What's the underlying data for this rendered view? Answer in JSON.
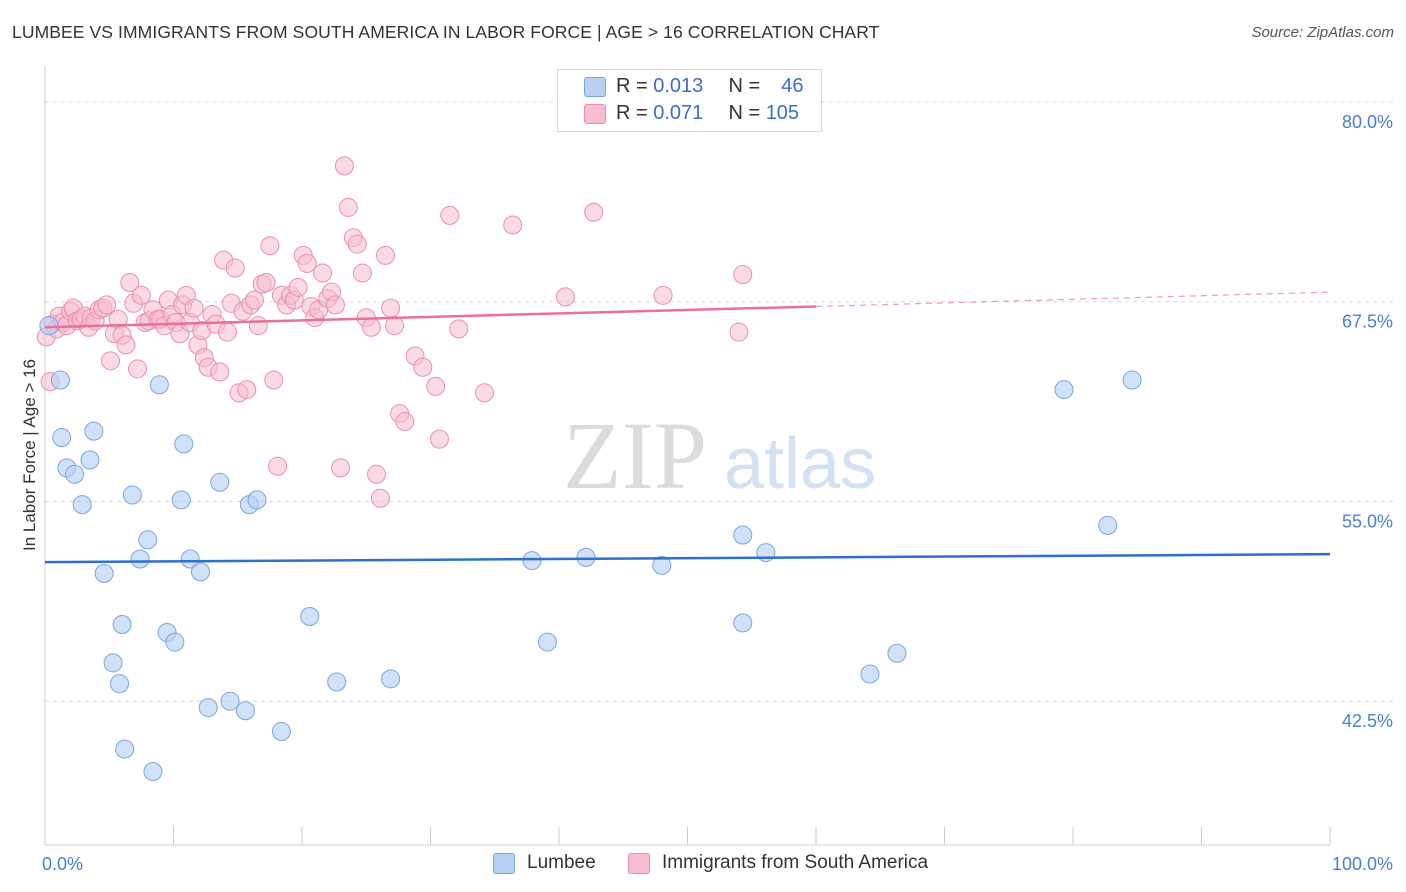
{
  "title": "LUMBEE VS IMMIGRANTS FROM SOUTH AMERICA IN LABOR FORCE | AGE > 16 CORRELATION CHART",
  "source": "Source: ZipAtlas.com",
  "watermark": {
    "zip": "ZIP",
    "atlas": "atlas"
  },
  "legend_top": [
    {
      "r_label": "R =",
      "r_value": "0.013",
      "n_label": "N =",
      "n_value": "46"
    },
    {
      "r_label": "R =",
      "r_value": "0.071",
      "n_label": "N =",
      "n_value": "105"
    }
  ],
  "colors": {
    "lumbee_fill": "#b8d1f2",
    "lumbee_stroke": "#7aa6e0",
    "lumbee_line": "#2e70cc",
    "immigrants_fill": "#f6bed0",
    "immigrants_stroke": "#ec8fac",
    "immigrants_line": "#e8709a",
    "axis_label": "#4a7fd0",
    "grid": "#d8d8d8"
  },
  "chart_data": {
    "type": "scatter",
    "title": "LUMBEE VS IMMIGRANTS FROM SOUTH AMERICA IN LABOR FORCE | AGE > 16 CORRELATION CHART",
    "xlabel": "",
    "ylabel": "In Labor Force | Age > 16",
    "x_unit": "%",
    "y_unit": "%",
    "xlim": [
      0,
      100
    ],
    "ylim": [
      33.5,
      81.5
    ],
    "x_tick_labels": [
      {
        "value": 0,
        "label": "0.0%"
      },
      {
        "value": 100,
        "label": "100.0%"
      }
    ],
    "y_tick_labels": [
      {
        "value": 80.0,
        "label": "80.0%"
      },
      {
        "value": 67.5,
        "label": "67.5%"
      },
      {
        "value": 55.0,
        "label": "55.0%"
      },
      {
        "value": 42.5,
        "label": "42.5%"
      }
    ],
    "grid": true,
    "legend_position": "top-center",
    "series": [
      {
        "name": "Lumbee",
        "r": 0.013,
        "n": 46,
        "trend": {
          "x": [
            0,
            100
          ],
          "y": [
            51.2,
            51.7
          ]
        },
        "points": [
          [
            0.3,
            66.0
          ],
          [
            1.2,
            62.6
          ],
          [
            1.3,
            59.0
          ],
          [
            1.7,
            57.1
          ],
          [
            2.3,
            56.7
          ],
          [
            2.9,
            54.8
          ],
          [
            3.5,
            57.6
          ],
          [
            3.8,
            59.4
          ],
          [
            4.6,
            50.5
          ],
          [
            5.3,
            44.9
          ],
          [
            5.8,
            43.6
          ],
          [
            6.0,
            47.3
          ],
          [
            6.2,
            39.5
          ],
          [
            6.8,
            55.4
          ],
          [
            7.4,
            51.4
          ],
          [
            8.0,
            52.6
          ],
          [
            8.4,
            38.1
          ],
          [
            8.9,
            62.3
          ],
          [
            9.5,
            46.8
          ],
          [
            10.1,
            46.2
          ],
          [
            10.6,
            55.1
          ],
          [
            10.8,
            58.6
          ],
          [
            11.3,
            51.4
          ],
          [
            12.1,
            50.6
          ],
          [
            12.7,
            42.1
          ],
          [
            13.6,
            56.2
          ],
          [
            14.4,
            42.5
          ],
          [
            15.6,
            41.9
          ],
          [
            15.9,
            54.8
          ],
          [
            16.5,
            55.1
          ],
          [
            18.4,
            40.6
          ],
          [
            20.6,
            47.8
          ],
          [
            22.7,
            43.7
          ],
          [
            26.9,
            43.9
          ],
          [
            37.9,
            51.3
          ],
          [
            39.1,
            46.2
          ],
          [
            42.1,
            51.5
          ],
          [
            48.0,
            51.0
          ],
          [
            54.3,
            52.9
          ],
          [
            54.3,
            47.4
          ],
          [
            56.1,
            51.8
          ],
          [
            64.2,
            44.2
          ],
          [
            66.3,
            45.5
          ],
          [
            79.3,
            62.0
          ],
          [
            82.7,
            53.5
          ],
          [
            84.6,
            62.6
          ]
        ]
      },
      {
        "name": "Immigrants from South America",
        "r": 0.071,
        "n": 105,
        "trend": {
          "x": [
            0,
            60
          ],
          "y": [
            65.9,
            67.2
          ]
        },
        "trend_extension": {
          "x": [
            60,
            100
          ],
          "y": [
            67.2,
            68.1
          ]
        },
        "points": [
          [
            0.1,
            65.3
          ],
          [
            0.4,
            62.5
          ],
          [
            0.6,
            66.1
          ],
          [
            0.9,
            65.8
          ],
          [
            1.1,
            66.6
          ],
          [
            1.4,
            66.2
          ],
          [
            1.7,
            66.0
          ],
          [
            2.0,
            66.9
          ],
          [
            2.2,
            67.1
          ],
          [
            2.5,
            66.3
          ],
          [
            2.8,
            66.4
          ],
          [
            3.1,
            66.6
          ],
          [
            3.4,
            65.9
          ],
          [
            3.6,
            66.5
          ],
          [
            3.9,
            66.3
          ],
          [
            4.2,
            67.0
          ],
          [
            4.5,
            67.1
          ],
          [
            4.8,
            67.3
          ],
          [
            5.1,
            63.8
          ],
          [
            5.4,
            65.5
          ],
          [
            5.7,
            66.4
          ],
          [
            6.0,
            65.4
          ],
          [
            6.3,
            64.8
          ],
          [
            6.6,
            68.7
          ],
          [
            6.9,
            67.4
          ],
          [
            7.2,
            63.3
          ],
          [
            7.5,
            67.9
          ],
          [
            7.8,
            66.2
          ],
          [
            8.1,
            66.3
          ],
          [
            8.4,
            67.0
          ],
          [
            8.8,
            66.4
          ],
          [
            9.0,
            66.4
          ],
          [
            9.3,
            66.0
          ],
          [
            9.6,
            67.6
          ],
          [
            9.9,
            66.7
          ],
          [
            10.2,
            66.2
          ],
          [
            10.5,
            65.5
          ],
          [
            10.7,
            67.3
          ],
          [
            11.0,
            67.9
          ],
          [
            11.3,
            66.2
          ],
          [
            11.6,
            67.1
          ],
          [
            11.9,
            64.8
          ],
          [
            12.2,
            65.7
          ],
          [
            12.4,
            64.0
          ],
          [
            12.7,
            63.4
          ],
          [
            13.0,
            66.7
          ],
          [
            13.3,
            66.1
          ],
          [
            13.6,
            63.1
          ],
          [
            13.9,
            70.1
          ],
          [
            14.2,
            65.6
          ],
          [
            14.5,
            67.4
          ],
          [
            14.8,
            69.6
          ],
          [
            15.1,
            61.8
          ],
          [
            15.4,
            66.9
          ],
          [
            15.7,
            62.0
          ],
          [
            16.0,
            67.3
          ],
          [
            16.3,
            67.6
          ],
          [
            16.6,
            66.0
          ],
          [
            16.9,
            68.6
          ],
          [
            17.2,
            68.7
          ],
          [
            17.5,
            71.0
          ],
          [
            17.8,
            62.6
          ],
          [
            18.1,
            57.2
          ],
          [
            18.4,
            67.9
          ],
          [
            18.8,
            67.3
          ],
          [
            19.1,
            67.9
          ],
          [
            19.4,
            67.6
          ],
          [
            19.7,
            68.4
          ],
          [
            20.1,
            70.4
          ],
          [
            20.4,
            69.9
          ],
          [
            20.7,
            67.2
          ],
          [
            21.0,
            66.5
          ],
          [
            21.3,
            67.0
          ],
          [
            21.6,
            69.3
          ],
          [
            22.0,
            67.7
          ],
          [
            22.3,
            68.1
          ],
          [
            22.6,
            67.3
          ],
          [
            23.0,
            57.1
          ],
          [
            23.3,
            76.0
          ],
          [
            23.6,
            73.4
          ],
          [
            24.0,
            71.5
          ],
          [
            24.3,
            71.1
          ],
          [
            24.7,
            69.3
          ],
          [
            25.0,
            66.5
          ],
          [
            25.4,
            65.9
          ],
          [
            25.8,
            56.7
          ],
          [
            26.1,
            55.2
          ],
          [
            26.5,
            70.4
          ],
          [
            26.9,
            67.1
          ],
          [
            27.2,
            66.0
          ],
          [
            27.6,
            60.5
          ],
          [
            28.0,
            60.0
          ],
          [
            28.8,
            64.1
          ],
          [
            29.4,
            63.4
          ],
          [
            30.4,
            62.2
          ],
          [
            30.7,
            58.9
          ],
          [
            31.5,
            72.9
          ],
          [
            32.2,
            65.8
          ],
          [
            34.2,
            61.8
          ],
          [
            36.4,
            72.3
          ],
          [
            40.5,
            67.8
          ],
          [
            42.7,
            73.1
          ],
          [
            48.1,
            67.9
          ],
          [
            54.0,
            65.6
          ],
          [
            54.3,
            69.2
          ]
        ]
      }
    ]
  },
  "axes": {
    "ylabel": "In Labor Force | Age > 16",
    "x_min_label": "0.0%",
    "x_max_label": "100.0%"
  },
  "legend_bottom": [
    {
      "label": "Lumbee"
    },
    {
      "label": "Immigrants from South America"
    }
  ]
}
